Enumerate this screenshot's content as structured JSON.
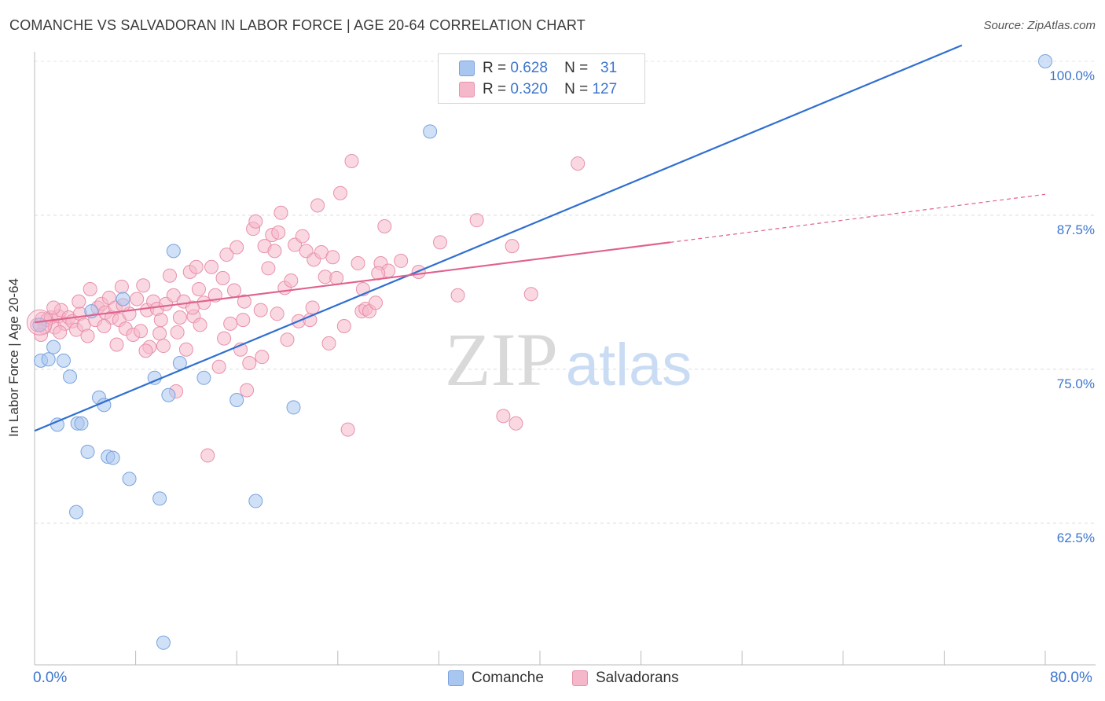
{
  "title": "COMANCHE VS SALVADORAN IN LABOR FORCE | AGE 20-64 CORRELATION CHART",
  "source": "Source: ZipAtlas.com",
  "watermark": {
    "zip": "ZIP",
    "atlas": "atlas"
  },
  "legend_top": [
    {
      "r_label": "R =",
      "r_value": "0.628",
      "n_label": "N =",
      "n_value": "31",
      "color": "#a9c6f0"
    },
    {
      "r_label": "R =",
      "r_value": "0.320",
      "n_label": "N =",
      "n_value": "127",
      "color": "#f5b8cb"
    }
  ],
  "legend_bottom": [
    {
      "label": "Comanche",
      "color": "#a9c6f0"
    },
    {
      "label": "Salvadorans",
      "color": "#f5b8cb"
    }
  ],
  "chart_data": {
    "type": "scatter",
    "xlabel": "",
    "ylabel": "In Labor Force | Age 20-64",
    "xlim": [
      0,
      80
    ],
    "ylim": [
      51,
      100
    ],
    "x_tick_labels": [
      "0.0%",
      "80.0%"
    ],
    "y_ticks": [
      62.5,
      75.0,
      87.5,
      100.0
    ],
    "y_tick_labels": [
      "62.5%",
      "75.0%",
      "87.5%",
      "100.0%"
    ],
    "grid": true,
    "legend_position": "top-center",
    "series": [
      {
        "name": "Comanche",
        "color": "#a9c6f0",
        "stroke": "#7aa3dc",
        "trend_color": "#2f6fd0",
        "trend": {
          "x": [
            0,
            73.4
          ],
          "y": [
            70.0,
            101.3
          ]
        },
        "points": [
          [
            0.5,
            75.7
          ],
          [
            1.1,
            75.8
          ],
          [
            1.5,
            76.8
          ],
          [
            1.8,
            70.5
          ],
          [
            2.3,
            75.7
          ],
          [
            2.8,
            74.4
          ],
          [
            3.3,
            63.4
          ],
          [
            3.4,
            70.6
          ],
          [
            3.7,
            70.6
          ],
          [
            4.2,
            68.3
          ],
          [
            4.5,
            79.7
          ],
          [
            5.1,
            72.7
          ],
          [
            5.5,
            72.1
          ],
          [
            5.8,
            67.9
          ],
          [
            6.2,
            67.8
          ],
          [
            7.0,
            80.7
          ],
          [
            7.5,
            66.1
          ],
          [
            9.5,
            74.3
          ],
          [
            9.9,
            64.5
          ],
          [
            10.2,
            52.8
          ],
          [
            10.6,
            72.9
          ],
          [
            11.0,
            84.6
          ],
          [
            11.5,
            75.5
          ],
          [
            13.4,
            74.3
          ],
          [
            16.0,
            72.5
          ],
          [
            17.5,
            64.3
          ],
          [
            20.5,
            71.9
          ],
          [
            31.3,
            94.3
          ],
          [
            33.7,
            100.0
          ],
          [
            80.0,
            100.0
          ],
          [
            0.4,
            78.6
          ]
        ]
      },
      {
        "name": "Salvadorans",
        "color": "#f5b8cb",
        "stroke": "#e890ab",
        "trend_color": "#e0628e",
        "trend": {
          "x": [
            0,
            50.3
          ],
          "y": [
            78.8,
            85.3
          ]
        },
        "trend_ext": {
          "x": [
            50.3,
            80
          ],
          "y": [
            85.3,
            89.2
          ]
        },
        "points": [
          [
            0.2,
            78.6
          ],
          [
            0.6,
            79.1
          ],
          [
            0.8,
            78.4
          ],
          [
            1.0,
            79.0
          ],
          [
            1.3,
            79.2
          ],
          [
            1.6,
            78.4
          ],
          [
            1.9,
            79.3
          ],
          [
            2.1,
            79.8
          ],
          [
            2.4,
            78.7
          ],
          [
            2.7,
            79.2
          ],
          [
            3.0,
            78.9
          ],
          [
            3.3,
            78.2
          ],
          [
            3.6,
            79.5
          ],
          [
            3.9,
            78.6
          ],
          [
            4.2,
            77.7
          ],
          [
            4.4,
            81.5
          ],
          [
            4.8,
            79.0
          ],
          [
            5.0,
            80.0
          ],
          [
            5.3,
            80.3
          ],
          [
            5.6,
            79.6
          ],
          [
            5.9,
            80.8
          ],
          [
            6.1,
            79.2
          ],
          [
            6.4,
            80.0
          ],
          [
            6.7,
            79.0
          ],
          [
            6.9,
            81.7
          ],
          [
            7.2,
            78.3
          ],
          [
            7.5,
            79.5
          ],
          [
            7.8,
            77.8
          ],
          [
            8.1,
            80.7
          ],
          [
            8.4,
            78.1
          ],
          [
            8.6,
            81.8
          ],
          [
            8.9,
            79.8
          ],
          [
            9.1,
            76.8
          ],
          [
            9.4,
            80.5
          ],
          [
            9.7,
            79.9
          ],
          [
            9.9,
            77.9
          ],
          [
            10.2,
            76.9
          ],
          [
            10.4,
            80.3
          ],
          [
            10.7,
            82.6
          ],
          [
            11.0,
            81.0
          ],
          [
            11.2,
            73.2
          ],
          [
            11.5,
            79.2
          ],
          [
            11.8,
            80.5
          ],
          [
            12.0,
            76.6
          ],
          [
            12.3,
            82.9
          ],
          [
            12.6,
            79.3
          ],
          [
            12.8,
            83.3
          ],
          [
            13.1,
            78.6
          ],
          [
            13.4,
            80.4
          ],
          [
            13.7,
            68.0
          ],
          [
            14.0,
            83.3
          ],
          [
            14.3,
            81.0
          ],
          [
            14.6,
            75.2
          ],
          [
            14.9,
            82.4
          ],
          [
            15.2,
            84.3
          ],
          [
            15.5,
            78.7
          ],
          [
            15.8,
            81.4
          ],
          [
            16.0,
            84.9
          ],
          [
            16.3,
            76.6
          ],
          [
            16.5,
            79.0
          ],
          [
            16.8,
            73.3
          ],
          [
            17.0,
            75.5
          ],
          [
            17.3,
            86.4
          ],
          [
            17.5,
            87.0
          ],
          [
            17.9,
            79.8
          ],
          [
            18.2,
            85.0
          ],
          [
            18.5,
            83.2
          ],
          [
            18.8,
            85.9
          ],
          [
            19.0,
            84.6
          ],
          [
            19.3,
            86.1
          ],
          [
            19.5,
            87.7
          ],
          [
            19.8,
            81.6
          ],
          [
            20.0,
            77.4
          ],
          [
            20.3,
            82.2
          ],
          [
            20.6,
            85.1
          ],
          [
            20.9,
            78.9
          ],
          [
            21.2,
            85.8
          ],
          [
            21.5,
            84.6
          ],
          [
            21.8,
            79.0
          ],
          [
            22.1,
            83.9
          ],
          [
            22.4,
            88.3
          ],
          [
            22.7,
            84.5
          ],
          [
            23.0,
            82.5
          ],
          [
            23.3,
            77.1
          ],
          [
            23.6,
            84.1
          ],
          [
            23.9,
            82.4
          ],
          [
            24.2,
            89.3
          ],
          [
            24.5,
            78.5
          ],
          [
            24.8,
            70.1
          ],
          [
            25.1,
            91.9
          ],
          [
            25.6,
            83.6
          ],
          [
            25.9,
            79.7
          ],
          [
            26.2,
            79.9
          ],
          [
            26.5,
            79.7
          ],
          [
            27.0,
            80.4
          ],
          [
            27.4,
            83.6
          ],
          [
            27.7,
            86.6
          ],
          [
            28.0,
            83.0
          ],
          [
            29.0,
            83.8
          ],
          [
            30.4,
            82.9
          ],
          [
            32.1,
            85.3
          ],
          [
            33.5,
            81.0
          ],
          [
            35.0,
            87.1
          ],
          [
            37.1,
            71.2
          ],
          [
            38.1,
            70.6
          ],
          [
            39.3,
            81.1
          ],
          [
            37.8,
            85.0
          ],
          [
            43.0,
            91.7
          ],
          [
            2.0,
            78.0
          ],
          [
            6.5,
            77.0
          ],
          [
            10.0,
            79.0
          ],
          [
            12.5,
            80.0
          ],
          [
            15.0,
            77.5
          ],
          [
            18.0,
            76.0
          ],
          [
            22.0,
            80.0
          ],
          [
            26.0,
            81.5
          ],
          [
            0.5,
            77.8
          ],
          [
            1.5,
            80.0
          ],
          [
            3.5,
            80.5
          ],
          [
            5.5,
            78.5
          ],
          [
            7.0,
            80.2
          ],
          [
            8.8,
            76.5
          ],
          [
            11.3,
            78.0
          ],
          [
            13.0,
            81.5
          ],
          [
            16.6,
            80.5
          ],
          [
            19.2,
            79.5
          ],
          [
            27.2,
            82.8
          ]
        ]
      }
    ]
  }
}
